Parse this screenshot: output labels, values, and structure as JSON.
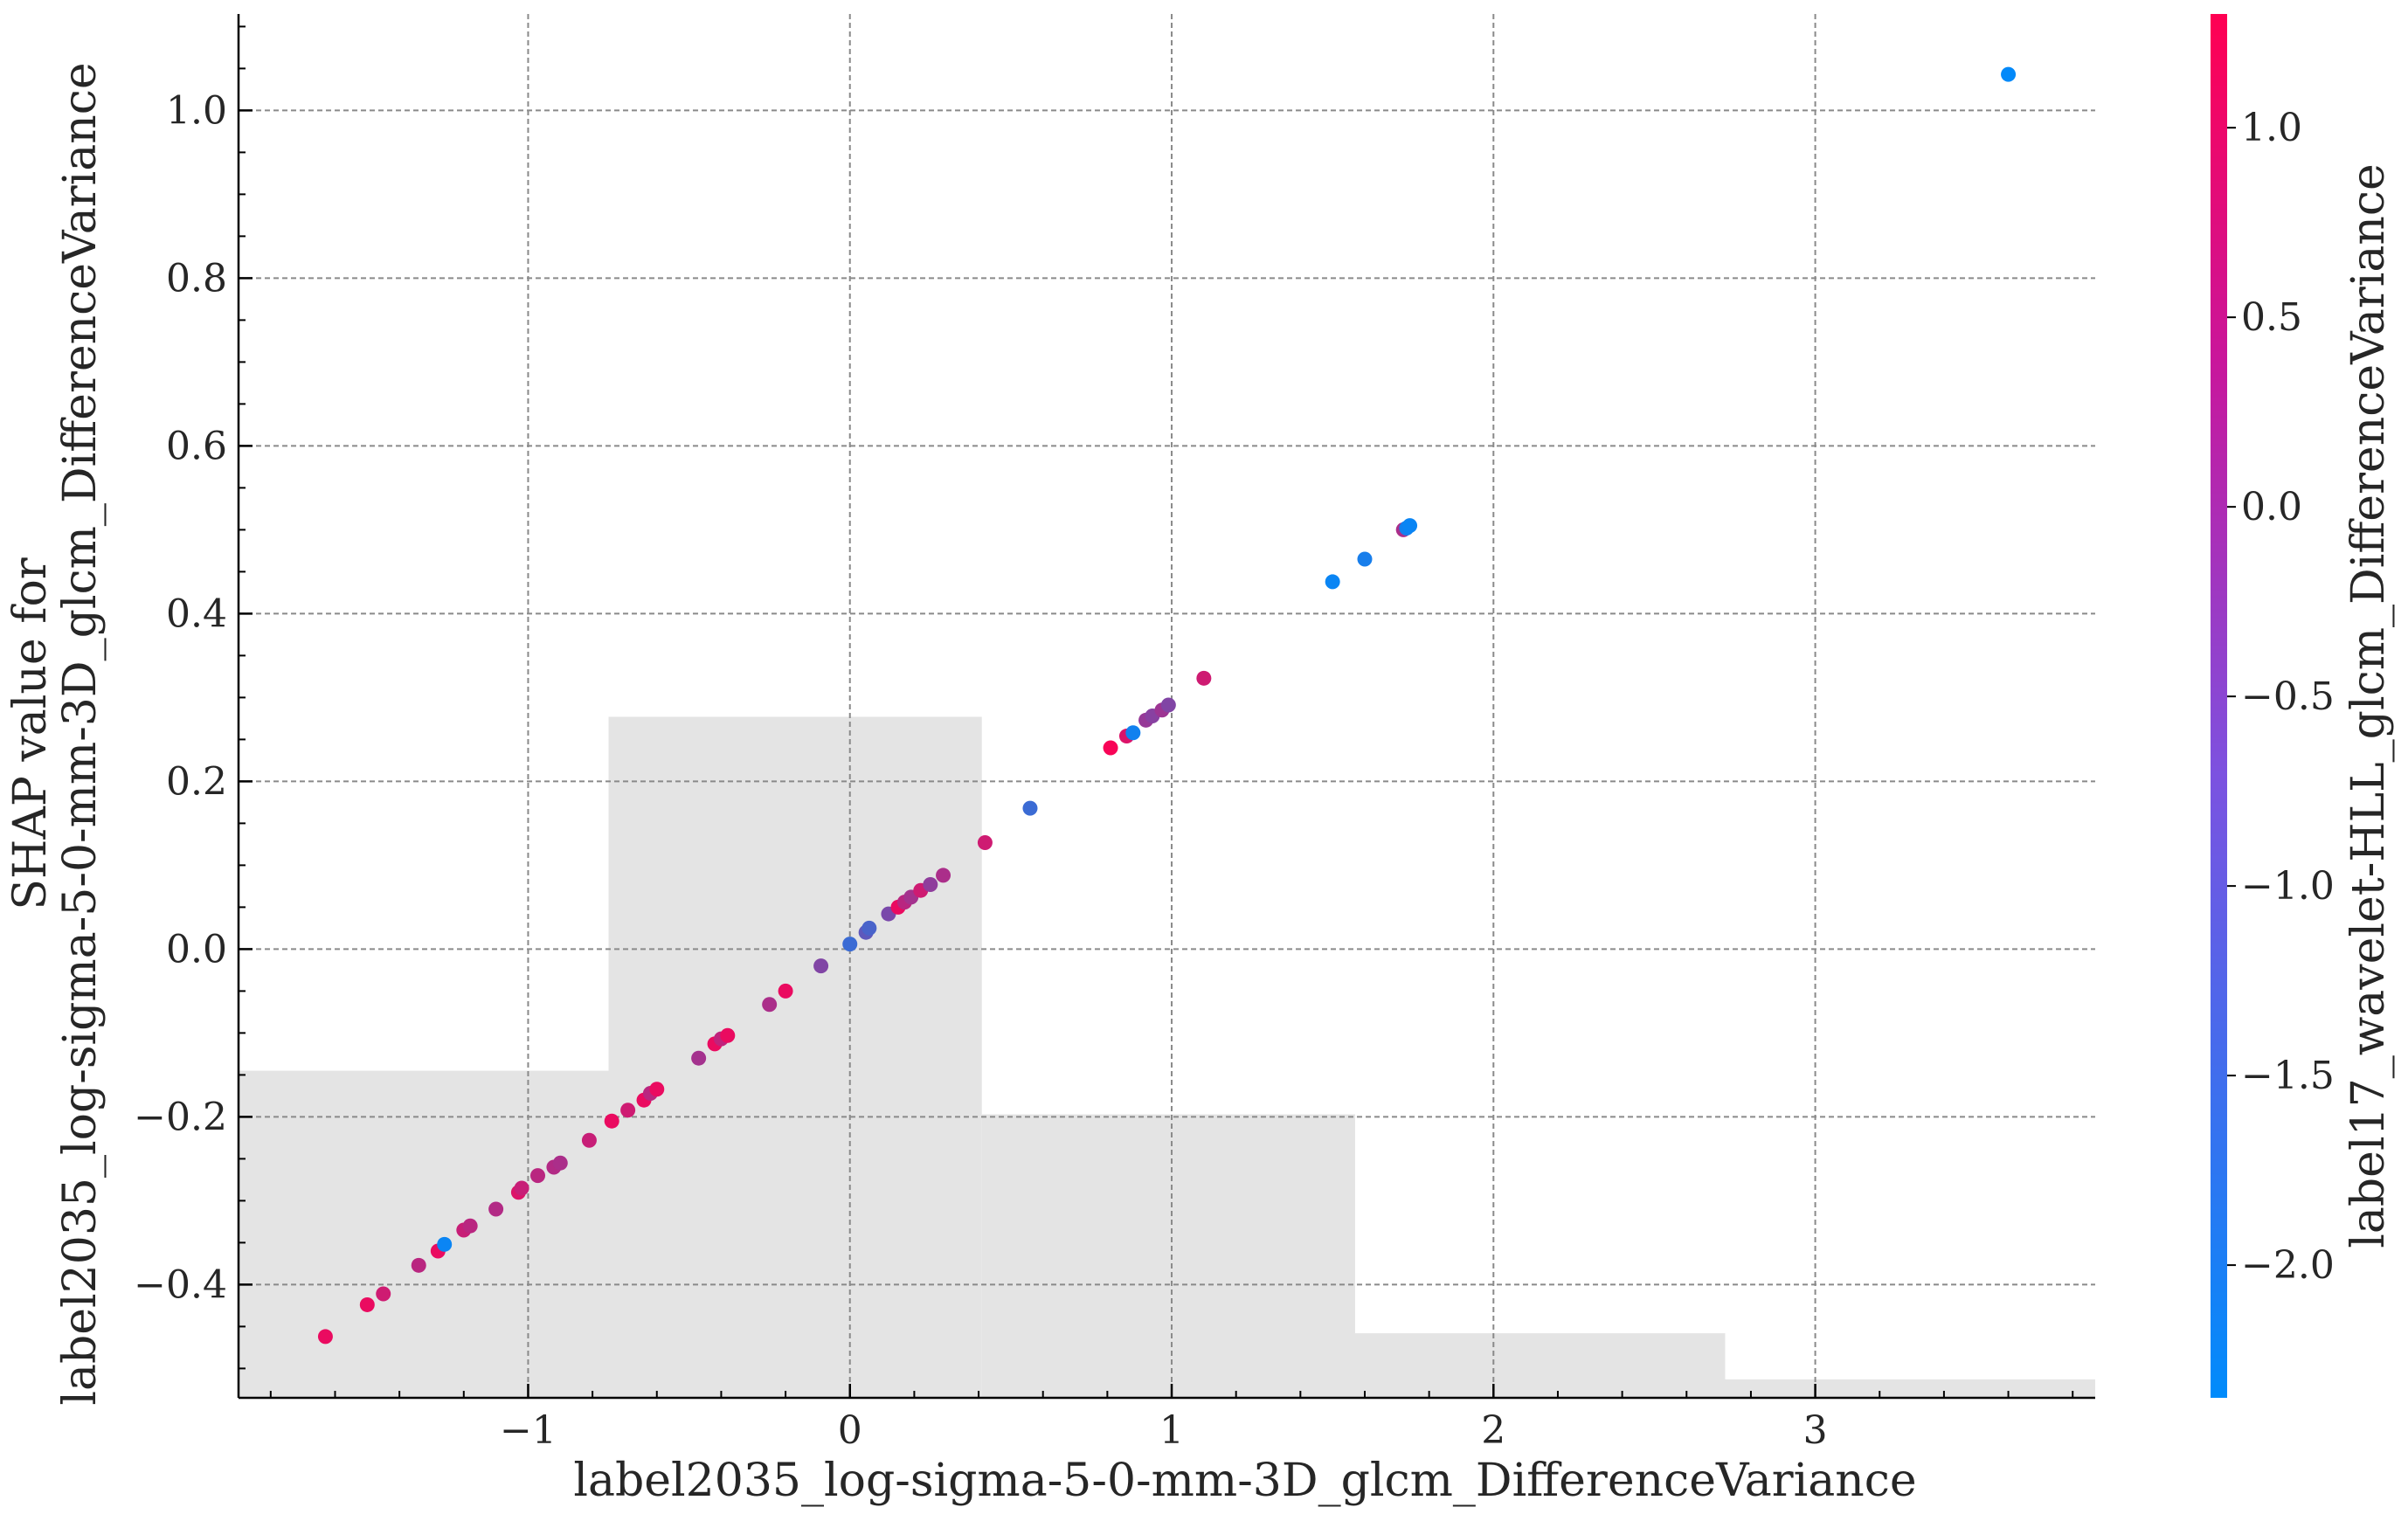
{
  "chart_data": {
    "type": "scatter",
    "title": "",
    "xlabel": "label2035_log-sigma-5-0-mm-3D_glcm_DifferenceVariance",
    "ylabel_lines": [
      "SHAP value for",
      "label2035_log-sigma-5-0-mm-3D_glcm_DifferenceVariance"
    ],
    "xlim": [
      -1.9,
      3.87
    ],
    "ylim": [
      -0.535,
      1.115
    ],
    "x_ticks": [
      -1,
      0,
      1,
      2,
      3
    ],
    "x_tick_labels": [
      "−1",
      "0",
      "1",
      "2",
      "3"
    ],
    "y_ticks": [
      -0.4,
      -0.2,
      0.0,
      0.2,
      0.4,
      0.6,
      0.8,
      1.0
    ],
    "y_tick_labels": [
      "−0.4",
      "−0.2",
      "0.0",
      "0.2",
      "0.4",
      "0.6",
      "0.8",
      "1.0"
    ],
    "grid": true,
    "histogram_bins": [
      {
        "x0": -1.9,
        "x1": -0.75,
        "y_top": -0.145
      },
      {
        "x0": -0.75,
        "x1": 0.41,
        "y_top": 0.277
      },
      {
        "x0": 0.41,
        "x1": 1.57,
        "y_top": -0.197
      },
      {
        "x0": 1.57,
        "x1": 2.72,
        "y_top": -0.458
      },
      {
        "x0": 2.72,
        "x1": 3.87,
        "y_top": -0.513
      }
    ],
    "histogram_color": "#e4e4e4",
    "colorbar": {
      "label": "label17_wavelet-HLL_glcm_DifferenceVariance",
      "range": [
        -2.35,
        1.3
      ],
      "ticks": [
        1.0,
        0.5,
        0.0,
        -0.5,
        -1.0,
        -1.5,
        -2.0
      ],
      "tick_labels": [
        "1.0",
        "0.5",
        "0.0",
        "−0.5",
        "−1.0",
        "−1.5",
        "−2.0"
      ],
      "color_low": "#008bfb",
      "color_high": "#ff0052"
    },
    "points": [
      {
        "x": -1.63,
        "y": -0.462,
        "c": 1.0
      },
      {
        "x": -1.5,
        "y": -0.424,
        "c": 1.0
      },
      {
        "x": -1.45,
        "y": -0.411,
        "c": 0.6
      },
      {
        "x": -1.34,
        "y": -0.377,
        "c": 0.3
      },
      {
        "x": -1.28,
        "y": -0.36,
        "c": 1.0
      },
      {
        "x": -1.26,
        "y": -0.352,
        "c": -2.2
      },
      {
        "x": -1.2,
        "y": -0.335,
        "c": 0.5
      },
      {
        "x": -1.18,
        "y": -0.33,
        "c": 0.3
      },
      {
        "x": -1.1,
        "y": -0.31,
        "c": 0.2
      },
      {
        "x": -1.03,
        "y": -0.29,
        "c": 0.8
      },
      {
        "x": -1.02,
        "y": -0.285,
        "c": 0.5
      },
      {
        "x": -0.97,
        "y": -0.27,
        "c": 0.3
      },
      {
        "x": -0.92,
        "y": -0.26,
        "c": 0.2
      },
      {
        "x": -0.9,
        "y": -0.255,
        "c": 0.1
      },
      {
        "x": -0.81,
        "y": -0.228,
        "c": 0.5
      },
      {
        "x": -0.74,
        "y": -0.205,
        "c": 1.0
      },
      {
        "x": -0.69,
        "y": -0.192,
        "c": 0.6
      },
      {
        "x": -0.64,
        "y": -0.18,
        "c": 1.0
      },
      {
        "x": -0.62,
        "y": -0.172,
        "c": 0.3
      },
      {
        "x": -0.6,
        "y": -0.167,
        "c": 1.0
      },
      {
        "x": -0.47,
        "y": -0.13,
        "c": 0.0
      },
      {
        "x": -0.42,
        "y": -0.113,
        "c": 1.0
      },
      {
        "x": -0.4,
        "y": -0.107,
        "c": 0.4
      },
      {
        "x": -0.38,
        "y": -0.103,
        "c": 1.0
      },
      {
        "x": -0.25,
        "y": -0.066,
        "c": 0.1
      },
      {
        "x": -0.2,
        "y": -0.05,
        "c": 1.0
      },
      {
        "x": -0.09,
        "y": -0.02,
        "c": -0.5
      },
      {
        "x": 0.0,
        "y": 0.006,
        "c": -1.5
      },
      {
        "x": 0.05,
        "y": 0.02,
        "c": -1.0
      },
      {
        "x": 0.06,
        "y": 0.025,
        "c": -1.3
      },
      {
        "x": 0.12,
        "y": 0.042,
        "c": -0.6
      },
      {
        "x": 0.15,
        "y": 0.05,
        "c": 1.0
      },
      {
        "x": 0.17,
        "y": 0.056,
        "c": 0.3
      },
      {
        "x": 0.19,
        "y": 0.062,
        "c": 0.0
      },
      {
        "x": 0.22,
        "y": 0.07,
        "c": 0.6
      },
      {
        "x": 0.25,
        "y": 0.077,
        "c": -0.3
      },
      {
        "x": 0.29,
        "y": 0.088,
        "c": 0.1
      },
      {
        "x": 0.42,
        "y": 0.127,
        "c": 0.6
      },
      {
        "x": 0.56,
        "y": 0.168,
        "c": -1.5
      },
      {
        "x": 0.81,
        "y": 0.24,
        "c": 1.2
      },
      {
        "x": 0.86,
        "y": 0.254,
        "c": 0.8
      },
      {
        "x": 0.88,
        "y": 0.258,
        "c": -2.1
      },
      {
        "x": 0.92,
        "y": 0.273,
        "c": -0.2
      },
      {
        "x": 0.94,
        "y": 0.278,
        "c": -0.4
      },
      {
        "x": 0.97,
        "y": 0.285,
        "c": -0.1
      },
      {
        "x": 0.99,
        "y": 0.291,
        "c": -0.5
      },
      {
        "x": 1.1,
        "y": 0.323,
        "c": 0.6
      },
      {
        "x": 1.5,
        "y": 0.438,
        "c": -2.2
      },
      {
        "x": 1.6,
        "y": 0.465,
        "c": -2.0
      },
      {
        "x": 1.72,
        "y": 0.5,
        "c": 0.1
      },
      {
        "x": 1.73,
        "y": 0.502,
        "c": -2.1
      },
      {
        "x": 1.74,
        "y": 0.505,
        "c": -2.2
      },
      {
        "x": 3.6,
        "y": 1.043,
        "c": -2.3
      }
    ]
  }
}
